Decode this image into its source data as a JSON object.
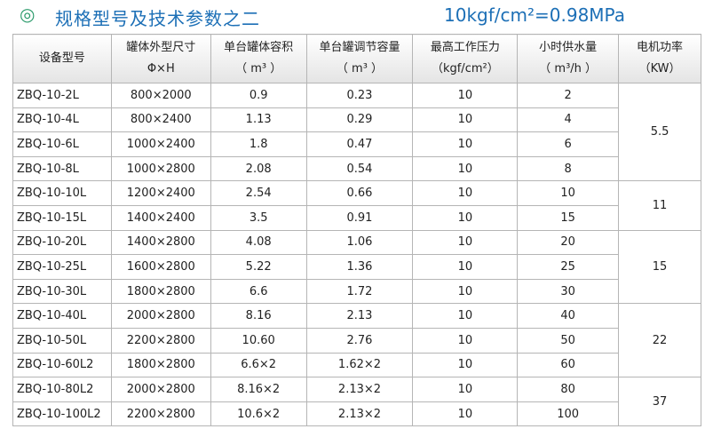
{
  "header": {
    "icon": "◎",
    "title": "规格型号及技术参数之二",
    "note": "10kgf/cm²=0.98MPa"
  },
  "table": {
    "columns": [
      [
        "设备型号"
      ],
      [
        "罐体外型尺寸",
        "Φ×H"
      ],
      [
        "单台罐体容积",
        "（ m³ ）"
      ],
      [
        "单台罐调节容量",
        "（ m³ ）"
      ],
      [
        "最高工作压力",
        "（kgf/cm²）"
      ],
      [
        "小时供水量",
        "（ m³/h ）"
      ],
      [
        "电机功率",
        "（KW）"
      ]
    ],
    "rows": [
      [
        "ZBQ-10-2L",
        "800×2000",
        "0.9",
        "0.23",
        "10",
        "2",
        "5.5"
      ],
      [
        "ZBQ-10-4L",
        "800×2400",
        "1.13",
        "0.29",
        "10",
        "4",
        null
      ],
      [
        "ZBQ-10-6L",
        "1000×2400",
        "1.8",
        "0.47",
        "10",
        "6",
        null
      ],
      [
        "ZBQ-10-8L",
        "1000×2800",
        "2.08",
        "0.54",
        "10",
        "8",
        null
      ],
      [
        "ZBQ-10-10L",
        "1200×2400",
        "2.54",
        "0.66",
        "10",
        "10",
        "11"
      ],
      [
        "ZBQ-10-15L",
        "1400×2400",
        "3.5",
        "0.91",
        "10",
        "15",
        null
      ],
      [
        "ZBQ-10-20L",
        "1400×2800",
        "4.08",
        "1.06",
        "10",
        "20",
        "15"
      ],
      [
        "ZBQ-10-25L",
        "1600×2800",
        "5.22",
        "1.36",
        "10",
        "25",
        null
      ],
      [
        "ZBQ-10-30L",
        "1800×2800",
        "6.6",
        "1.72",
        "10",
        "30",
        null
      ],
      [
        "ZBQ-10-40L",
        "2000×2800",
        "8.16",
        "2.13",
        "10",
        "40",
        "22"
      ],
      [
        "ZBQ-10-50L",
        "2200×2800",
        "10.60",
        "2.76",
        "10",
        "50",
        null
      ],
      [
        "ZBQ-10-60L2",
        "1800×2800",
        "6.6×2",
        "1.62×2",
        "10",
        "60",
        null
      ],
      [
        "ZBQ-10-80L2",
        "2000×2800",
        "8.16×2",
        "2.13×2",
        "10",
        "80",
        "37"
      ],
      [
        "ZBQ-10-100L2",
        "2200×2800",
        "10.6×2",
        "2.13×2",
        "10",
        "100",
        null
      ]
    ]
  }
}
